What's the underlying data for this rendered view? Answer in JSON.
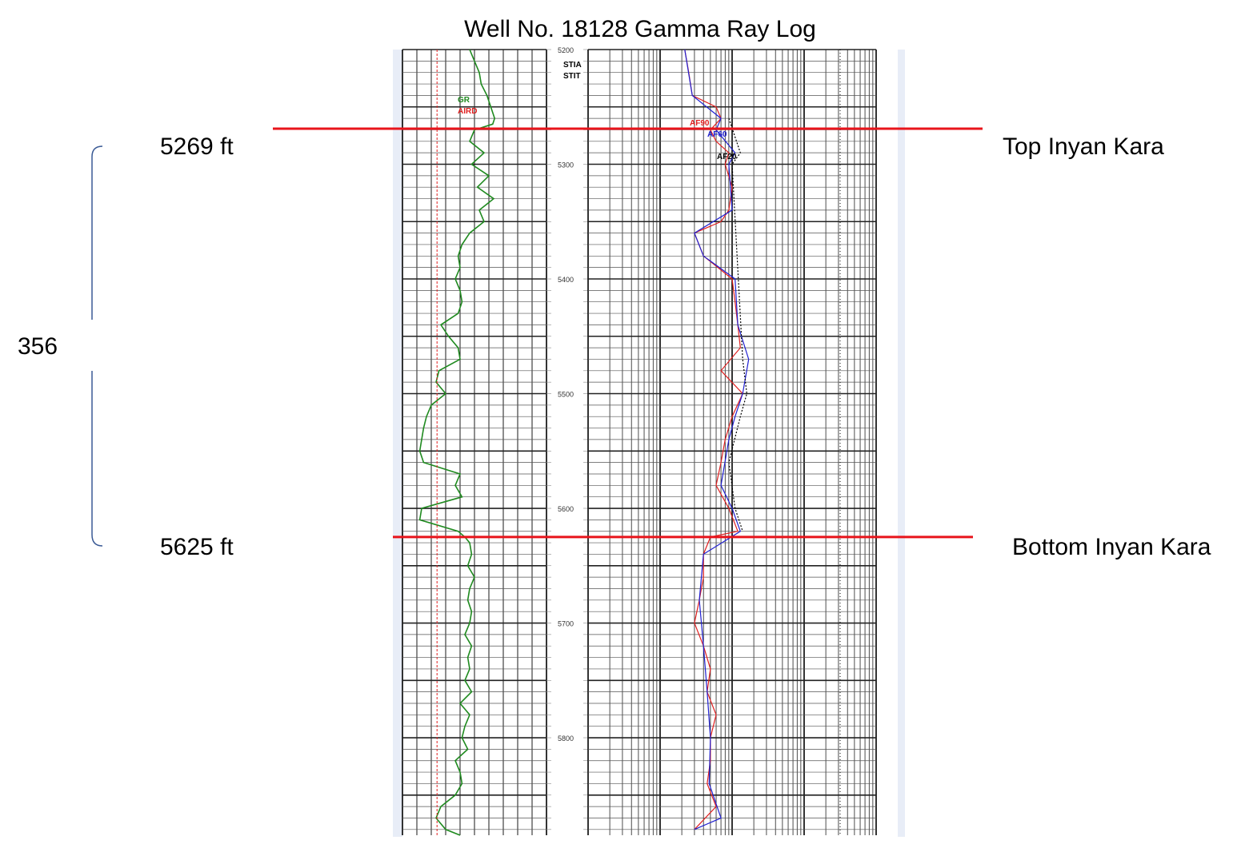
{
  "chart_data": {
    "type": "line",
    "title": "Well No. 18128 Gamma Ray Log",
    "depth_scale_labels": [
      "5200",
      "5300",
      "5400",
      "5500",
      "5600",
      "5700",
      "5800"
    ],
    "depth_range_ft": [
      5200,
      5885
    ],
    "gamma_track": {
      "legend": [
        "GR",
        "AIRD"
      ],
      "series": [
        {
          "name": "GR",
          "color": "#1f8a1f",
          "depth": [
            5200,
            5210,
            5220,
            5230,
            5240,
            5250,
            5260,
            5265,
            5270,
            5280,
            5290,
            5300,
            5310,
            5320,
            5330,
            5340,
            5350,
            5360,
            5370,
            5380,
            5390,
            5400,
            5410,
            5420,
            5430,
            5440,
            5450,
            5460,
            5470,
            5480,
            5490,
            5500,
            5510,
            5520,
            5530,
            5540,
            5550,
            5560,
            5570,
            5580,
            5590,
            5600,
            5610,
            5620,
            5625,
            5630,
            5640,
            5650,
            5660,
            5670,
            5680,
            5690,
            5700,
            5710,
            5720,
            5730,
            5740,
            5750,
            5760,
            5770,
            5780,
            5790,
            5800,
            5810,
            5820,
            5830,
            5840,
            5850,
            5860,
            5870,
            5880,
            5885
          ],
          "value": [
            70,
            75,
            80,
            82,
            88,
            92,
            96,
            94,
            75,
            70,
            85,
            72,
            90,
            78,
            95,
            80,
            85,
            70,
            62,
            58,
            60,
            55,
            60,
            62,
            58,
            40,
            48,
            58,
            60,
            38,
            35,
            45,
            30,
            25,
            22,
            20,
            18,
            22,
            60,
            55,
            62,
            20,
            18,
            58,
            65,
            70,
            72,
            68,
            75,
            70,
            68,
            72,
            70,
            65,
            72,
            68,
            70,
            65,
            72,
            60,
            70,
            65,
            62,
            68,
            55,
            60,
            62,
            55,
            40,
            35,
            45,
            60
          ]
        },
        {
          "name": "AIRD",
          "color": "#e02020",
          "depth": [
            5200,
            5885
          ],
          "value": [
            36,
            36
          ]
        }
      ]
    },
    "resistivity_track": {
      "legend": [
        "STIA",
        "STIT",
        "AF90",
        "AF60",
        "AF20"
      ],
      "series": [
        {
          "name": "AF90",
          "color": "#e02020",
          "depth": [
            5200,
            5220,
            5240,
            5250,
            5260,
            5270,
            5280,
            5290,
            5300,
            5320,
            5340,
            5350,
            5360,
            5380,
            5400,
            5420,
            5440,
            5460,
            5480,
            5500,
            5520,
            5540,
            5560,
            5580,
            5600,
            5620,
            5625,
            5640,
            5660,
            5680,
            5700,
            5720,
            5740,
            5760,
            5780,
            5800,
            5820,
            5840,
            5860,
            5880
          ],
          "value": [
            2.2,
            2.5,
            2.8,
            6,
            7,
            5,
            6,
            9,
            8,
            10,
            9,
            7,
            3,
            4,
            10,
            11,
            12,
            13,
            7,
            14,
            10,
            8,
            7,
            6,
            9,
            12,
            5,
            4,
            4,
            3.5,
            3,
            4,
            5,
            4.5,
            6,
            5,
            5,
            4.5,
            6,
            3
          ]
        },
        {
          "name": "AF60",
          "color": "#2020d0",
          "depth": [
            5200,
            5240,
            5260,
            5270,
            5290,
            5300,
            5340,
            5360,
            5380,
            5400,
            5440,
            5470,
            5500,
            5520,
            5540,
            5580,
            5600,
            5620,
            5640,
            5680,
            5720,
            5760,
            5800,
            5840,
            5870,
            5880
          ],
          "value": [
            2.2,
            2.8,
            7,
            6,
            11,
            9,
            10,
            3,
            4,
            11,
            12,
            17,
            14,
            11,
            9,
            7,
            10,
            13,
            4,
            3.5,
            4,
            4.5,
            5,
            4.8,
            7,
            3
          ]
        },
        {
          "name": "AF20",
          "color": "#000000",
          "depth": [
            5260,
            5290,
            5300,
            5470,
            5500,
            5520,
            5560,
            5600,
            5620
          ],
          "value": [
            9,
            13,
            10,
            14,
            16,
            13,
            9,
            11,
            14
          ]
        }
      ]
    },
    "annotations": {
      "top_depth_label": "5269 ft",
      "top_name": "Top Inyan Kara",
      "top_depth_ft": 5269,
      "bottom_depth_label": "5625 ft",
      "bottom_name": "Bottom Inyan Kara",
      "bottom_depth_ft": 5625,
      "thickness_label": "356",
      "marker_color": "#e8141b",
      "bracket_color": "#3a5a95"
    }
  }
}
